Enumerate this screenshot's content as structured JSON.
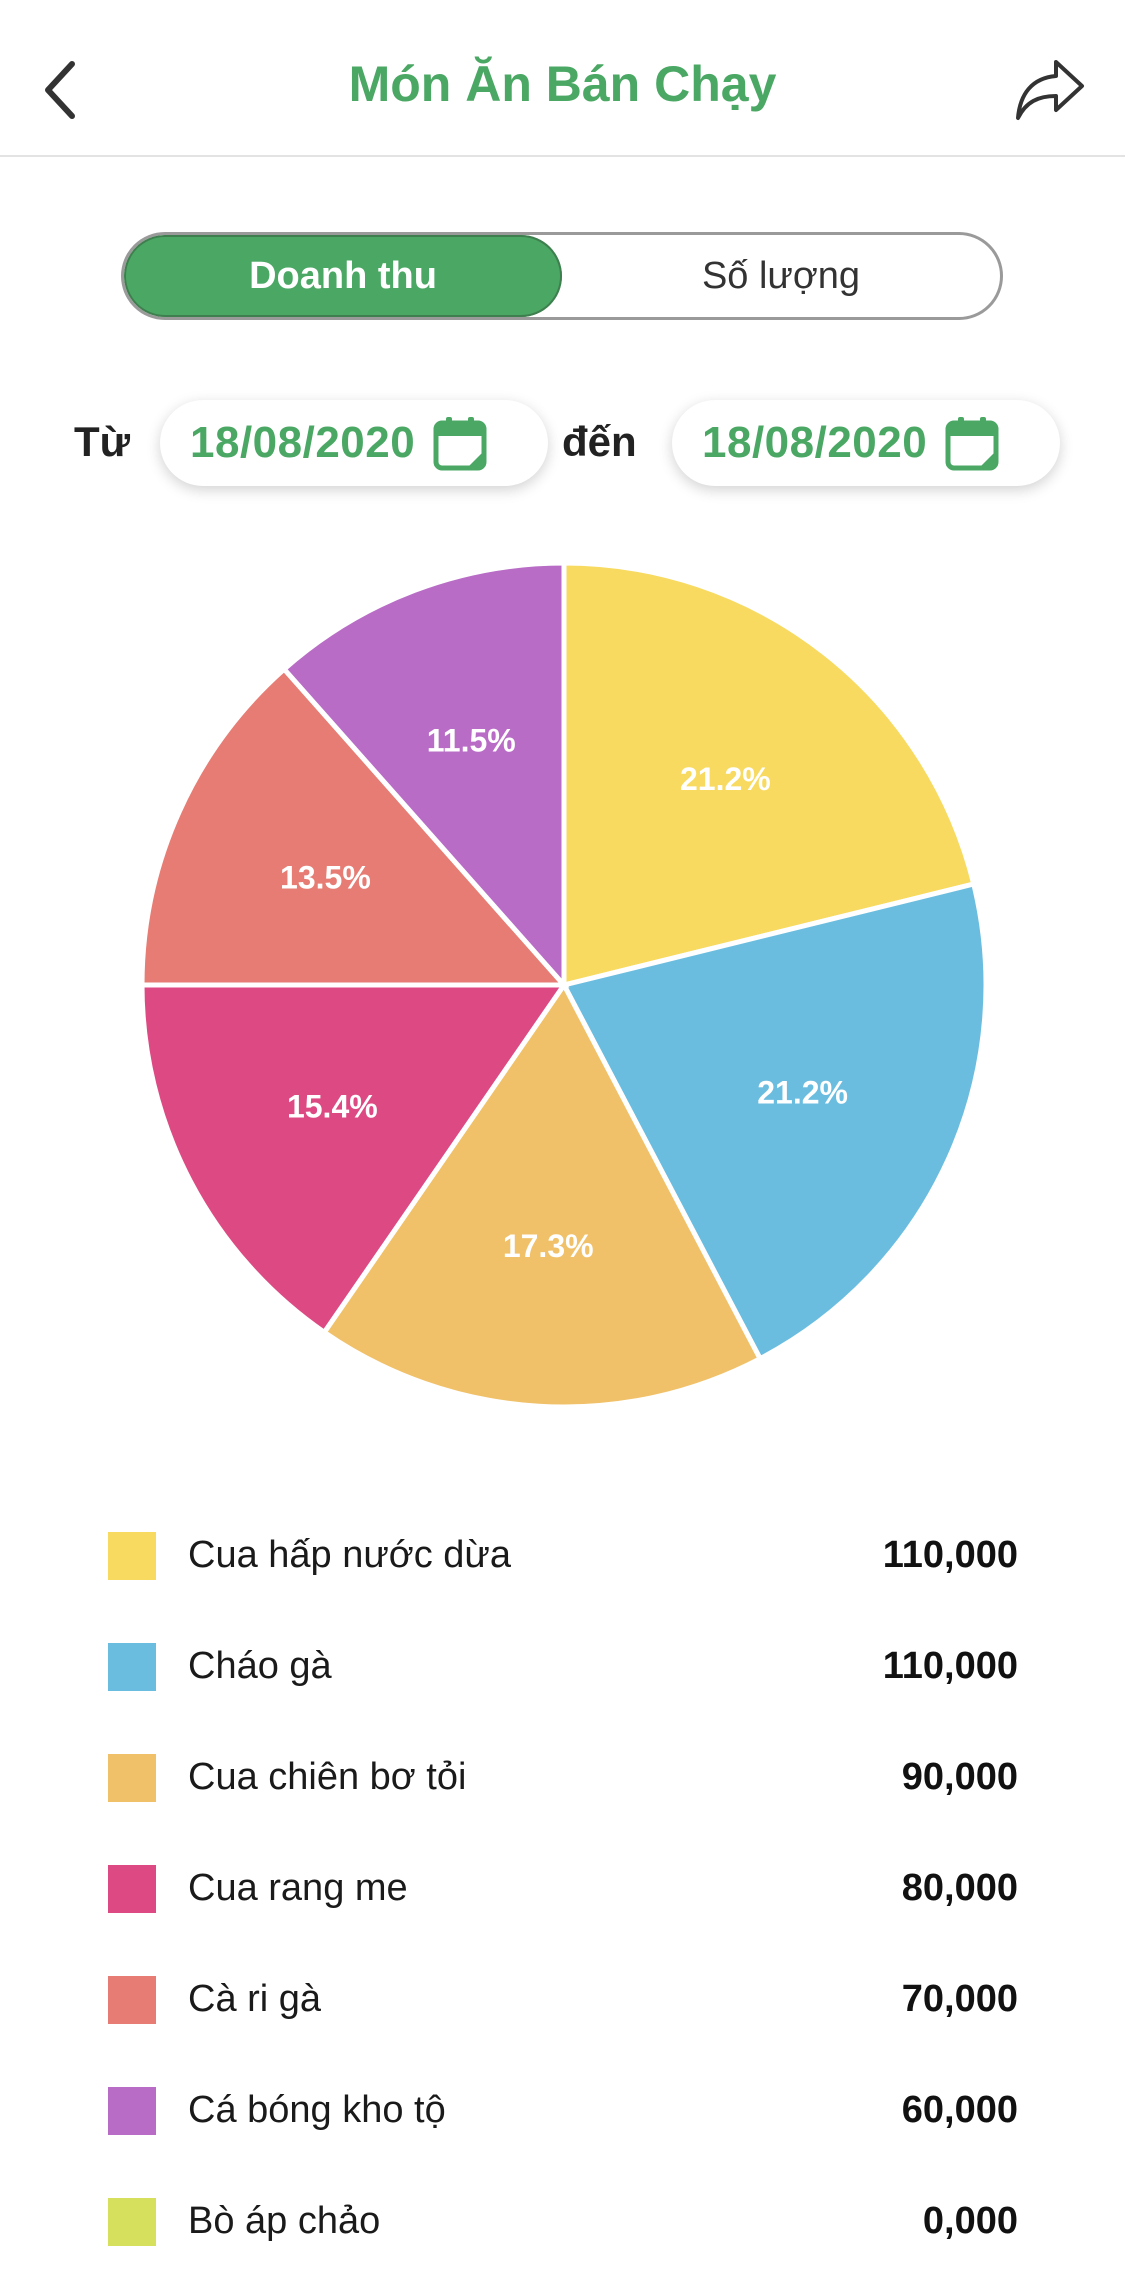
{
  "header": {
    "title": "Món Ăn Bán Chạy",
    "back_icon": "chevron-left-icon",
    "share_icon": "share-icon"
  },
  "tabs": [
    {
      "label": "Doanh thu",
      "active": true
    },
    {
      "label": "Số lượng",
      "active": false
    }
  ],
  "filter": {
    "from_label": "Từ",
    "from_date": "18/08/2020",
    "to_label": "đến",
    "to_date": "18/08/2020",
    "calendar_icon": "calendar-icon"
  },
  "colors": {
    "accent": "#4aa864"
  },
  "chart_data": {
    "type": "pie",
    "categories": [
      "Cua hấp nước dừa",
      "Cháo gà",
      "Cua chiên bơ tỏi",
      "Cua rang me",
      "Cà ri gà",
      "Cá bóng kho tộ",
      "Bò áp chảo"
    ],
    "values": [
      110000,
      110000,
      90000,
      80000,
      70000,
      60000,
      0
    ],
    "percent_labels": [
      "21.2%",
      "21.2%",
      "17.3%",
      "15.4%",
      "13.5%",
      "11.5%",
      ""
    ],
    "colors": [
      "#f7da5f",
      "#6bbde0",
      "#f0c169",
      "#dd4a83",
      "#e67c73",
      "#b86cc6",
      "#d7e05c"
    ]
  },
  "legend": [
    {
      "name": "Cua hấp nước dừa",
      "value": "110,000",
      "color": "#f7da5f"
    },
    {
      "name": "Cháo gà",
      "value": "110,000",
      "color": "#6bbde0"
    },
    {
      "name": "Cua chiên bơ tỏi",
      "value": "90,000",
      "color": "#f0c169"
    },
    {
      "name": "Cua rang me",
      "value": "80,000",
      "color": "#dd4a83"
    },
    {
      "name": "Cà ri gà",
      "value": "70,000",
      "color": "#e67c73"
    },
    {
      "name": "Cá bóng kho tộ",
      "value": "60,000",
      "color": "#b86cc6"
    },
    {
      "name": "Bò áp chảo",
      "value": "0,000",
      "color": "#d7e05c"
    }
  ]
}
